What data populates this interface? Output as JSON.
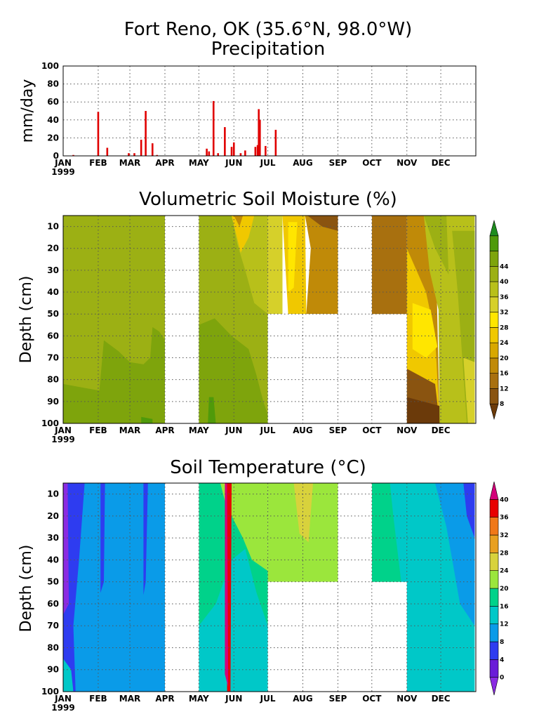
{
  "titles": {
    "site": "Fort Reno, OK (35.6°N, 98.0°W)",
    "precip": "Precipitation",
    "moisture": "Volumetric Soil Moisture (%)",
    "temperature": "Soil Temperature (°C)"
  },
  "months": [
    "JAN",
    "FEB",
    "MAR",
    "APR",
    "MAY",
    "JUN",
    "JUL",
    "AUG",
    "SEP",
    "OCT",
    "NOV",
    "DEC"
  ],
  "year": "1999",
  "chart_data": [
    {
      "type": "bar",
      "title": "Precipitation",
      "ylabel": "mm/day",
      "ylim": [
        0,
        100
      ],
      "yticks": [
        "0",
        "20",
        "40",
        "60",
        "80",
        "100"
      ],
      "xlabel": "",
      "x_unit": "day of year",
      "bar_color": "#e00000",
      "days": [
        10,
        32,
        40,
        59,
        64,
        70,
        74,
        80,
        84,
        128,
        130,
        134,
        138,
        144,
        150,
        152,
        158,
        162,
        171,
        173,
        174,
        175,
        180,
        189
      ],
      "values": [
        1,
        49,
        9,
        3,
        3,
        18,
        50,
        14,
        1,
        8,
        5,
        61,
        3,
        32,
        10,
        15,
        3,
        6,
        10,
        12,
        52,
        40,
        11,
        29
      ],
      "grid": true
    },
    {
      "type": "heatmap",
      "title": "Volumetric Soil Moisture (%)",
      "ylabel": "Depth (cm)",
      "yticks": [
        "10",
        "20",
        "30",
        "40",
        "50",
        "60",
        "70",
        "80",
        "90",
        "100"
      ],
      "colorbar_ticks": [
        "8",
        "12",
        "16",
        "20",
        "24",
        "28",
        "32",
        "36",
        "40",
        "44"
      ],
      "colorbar_colors": [
        "#6b3a0a",
        "#8a5410",
        "#a8700f",
        "#c08a08",
        "#d8a800",
        "#f0c800",
        "#ffe600",
        "#d6d02a",
        "#b8c01a",
        "#9cb014",
        "#7ea40c",
        "#4f9a0a",
        "#1e8c1e"
      ],
      "grid": true
    },
    {
      "type": "heatmap",
      "title": "Soil Temperature (°C)",
      "ylabel": "Depth (cm)",
      "yticks": [
        "10",
        "20",
        "30",
        "40",
        "50",
        "60",
        "70",
        "80",
        "90",
        "100"
      ],
      "colorbar_ticks": [
        "0",
        "4",
        "8",
        "12",
        "16",
        "20",
        "24",
        "28",
        "32",
        "36",
        "40"
      ],
      "colorbar_colors": [
        "#8a2be2",
        "#6a1bd8",
        "#2e3cf0",
        "#0a9be8",
        "#00c8c8",
        "#00d28a",
        "#9be63c",
        "#d8d23c",
        "#e8a020",
        "#f07818",
        "#e80000",
        "#d4007a"
      ],
      "grid": true
    }
  ]
}
